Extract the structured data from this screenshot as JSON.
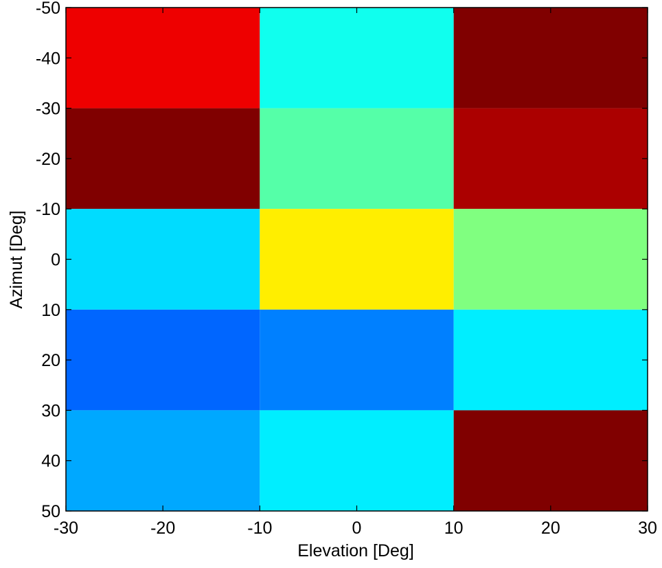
{
  "chart_data": {
    "type": "heatmap",
    "title": "",
    "xlabel": "Elevation [Deg]",
    "ylabel": "Azimut [Deg]",
    "xlim": [
      -30,
      30
    ],
    "ylim": [
      -50,
      50
    ],
    "y_direction": "reversed",
    "x_edges": [
      -30,
      -10,
      10,
      30
    ],
    "y_edges": [
      -50,
      -30,
      -10,
      10,
      30,
      50
    ],
    "x_ticks": [
      -30,
      -20,
      -10,
      0,
      10,
      20,
      30
    ],
    "x_tick_labels": [
      "-30",
      "-20",
      "-10",
      "0",
      "10",
      "20",
      "30"
    ],
    "y_ticks": [
      -50,
      -40,
      -30,
      -20,
      -10,
      0,
      10,
      20,
      30,
      40,
      50
    ],
    "y_tick_labels": [
      "-50",
      "-40",
      "-30",
      "-20",
      "-10",
      "0",
      "10",
      "20",
      "30",
      "40",
      "50"
    ],
    "colormap": "jet",
    "grid": false,
    "cells": [
      [
        "#ee0000",
        "#10ffee",
        "#800000"
      ],
      [
        "#800000",
        "#55ffa8",
        "#ab0000"
      ],
      [
        "#00dcff",
        "#ffee00",
        "#80ff80"
      ],
      [
        "#0066ff",
        "#0080ff",
        "#00eeff"
      ],
      [
        "#00a8ff",
        "#00eeff",
        "#800000"
      ]
    ]
  }
}
